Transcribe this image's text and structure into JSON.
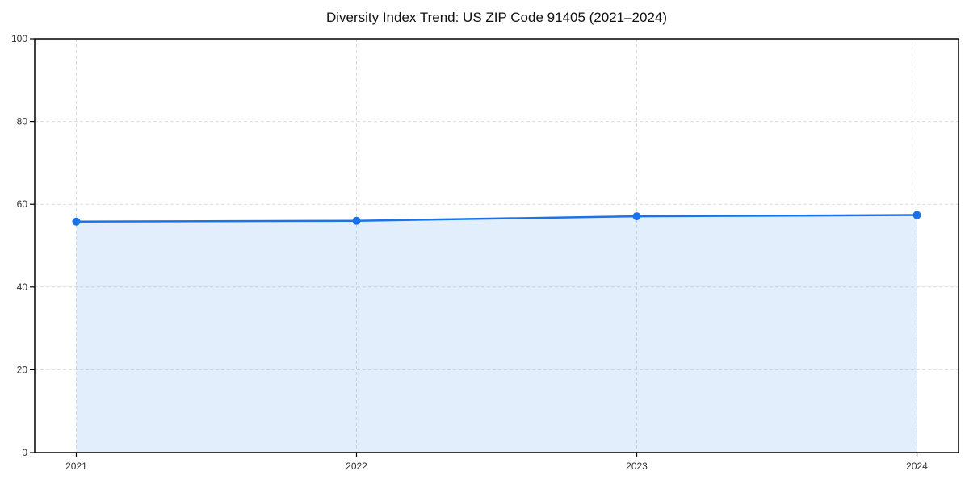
{
  "chart_data": {
    "type": "line",
    "title": "Diversity Index Trend: US ZIP Code 91405 (2021–2024)",
    "x": [
      "2021",
      "2022",
      "2023",
      "2024"
    ],
    "series": [
      {
        "name": "Diversity Index",
        "values": [
          55.8,
          56.0,
          57.1,
          57.4
        ]
      }
    ],
    "xlabel": "",
    "ylabel": "",
    "ylim": [
      0,
      100
    ],
    "yticks": [
      0,
      20,
      40,
      60,
      80,
      100
    ],
    "grid": true,
    "grid_style": "dashed",
    "legend": "none",
    "marker": "circle",
    "marker_radius": 5,
    "line_width": 2.5,
    "colors": {
      "line": "#1a73e8",
      "marker": "#1a73e8",
      "area_fill": "#1a73e8",
      "area_opacity": 0.12,
      "grid": "#dcdcdc",
      "axis": "#000000",
      "tick_label": "#333333",
      "title": "#111111",
      "background": "#ffffff"
    }
  }
}
